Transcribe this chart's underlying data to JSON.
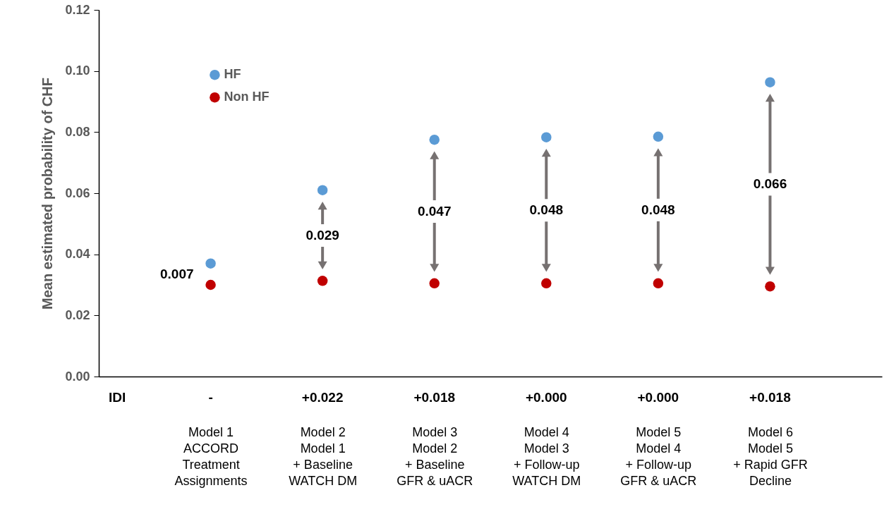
{
  "chart_data": {
    "type": "scatter",
    "ylabel": "Mean  estimated probability of CHF",
    "categories": [
      "Model 1\nACCORD\nTreatment\nAssignments",
      "Model 2\nModel 1\n+ Baseline\nWATCH DM",
      "Model 3\nModel 2\n+ Baseline\nGFR & uACR",
      "Model  4\nModel 3\n+ Follow-up\nWATCH DM",
      "Model 5\nModel 4\n+ Follow-up\nGFR & uACR",
      "Model 6\nModel 5\n+ Rapid GFR\nDecline"
    ],
    "series": [
      {
        "name": "HF",
        "color": "#5b9bd5",
        "values": [
          0.037,
          0.061,
          0.0775,
          0.0783,
          0.0785,
          0.0963
        ]
      },
      {
        "name": "Non HF",
        "color": "#c00000",
        "values": [
          0.03,
          0.0313,
          0.0305,
          0.0305,
          0.0305,
          0.0295
        ]
      }
    ],
    "ylim": [
      0,
      0.12
    ],
    "yticks": [
      {
        "value": 0,
        "label": "0.00"
      },
      {
        "value": 0.02,
        "label": "0.02"
      },
      {
        "value": 0.04,
        "label": "0.04"
      },
      {
        "value": 0.06,
        "label": "0.06"
      },
      {
        "value": 0.08,
        "label": "0.08"
      },
      {
        "value": 0.1,
        "label": "0.10"
      },
      {
        "value": 0.12,
        "label": "0.12"
      }
    ],
    "grid": false,
    "legend": "top left",
    "marker": "circle",
    "annotations": [
      "0.007",
      "0.029",
      "0.047",
      "0.048",
      "0.048",
      "0.066",
      "IDI",
      "-",
      "+0.022",
      "+0.018",
      "+0.000",
      "+0.000",
      "+0.018"
    ]
  }
}
